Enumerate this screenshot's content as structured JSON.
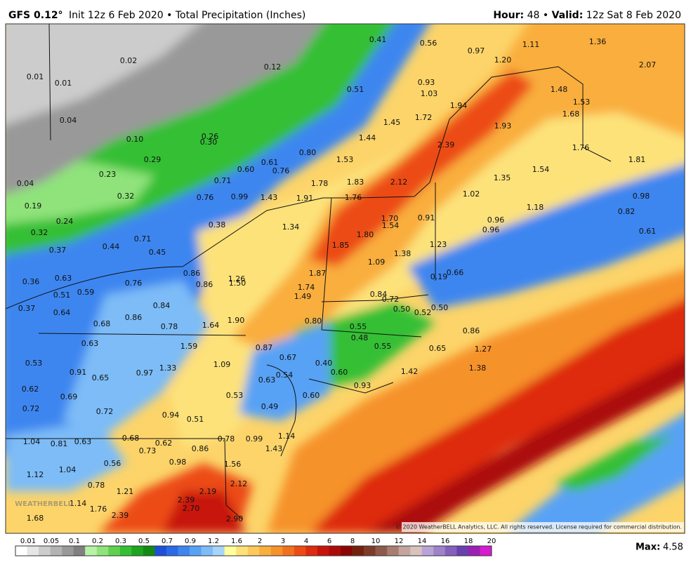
{
  "header": {
    "model": "GFS 0.12°",
    "subtitle": "Init 12z 6 Feb 2020 • Total Precipitation (Inches)",
    "hour_label": "Hour:",
    "hour_value": "48 •",
    "valid_label": "Valid:",
    "valid_value": "12z Sat 8 Feb 2020"
  },
  "map": {
    "watermark": "WEATHERBELL",
    "copyright": "© 2020 WeatherBELL Analytics, LLC. All rights reserved. License required for commercial distribution.",
    "labels": [
      "0.02",
      "0.12",
      "0.01",
      "0.01",
      "0.04",
      "0.10",
      "0.26",
      "0.30",
      "0.29",
      "0.23",
      "0.32",
      "0.04",
      "0.19",
      "0.24",
      "0.32",
      "0.37",
      "0.44",
      "0.71",
      "0.45",
      "0.41",
      "0.56",
      "0.97",
      "1.11",
      "1.36",
      "1.20",
      "2.07",
      "0.51",
      "0.93",
      "1.03",
      "1.48",
      "1.53",
      "1.94",
      "1.68",
      "1.45",
      "1.72",
      "1.93",
      "1.44",
      "0.80",
      "2.39",
      "1.76",
      "1.53",
      "1.54",
      "1.81",
      "0.61",
      "0.60",
      "0.76",
      "0.71",
      "1.78",
      "1.83",
      "2.12",
      "1.35",
      "0.76",
      "0.99",
      "1.43",
      "1.91",
      "1.76",
      "1.02",
      "1.18",
      "0.98",
      "0.82",
      "0.38",
      "1.34",
      "1.70",
      "1.54",
      "0.91",
      "0.96",
      "0.96",
      "0.61",
      "1.80",
      "1.85",
      "1.23",
      "1.38",
      "1.09",
      "0.86",
      "0.66",
      "0.19",
      "0.63",
      "0.36",
      "1.26",
      "1.50",
      "1.87",
      "0.76",
      "0.86",
      "1.74",
      "0.51",
      "0.59",
      "1.49",
      "0.84",
      "0.72",
      "0.84",
      "0.37",
      "0.50",
      "0.52",
      "0.50",
      "0.64",
      "0.86",
      "0.68",
      "0.78",
      "1.64",
      "1.90",
      "0.80",
      "0.55",
      "0.86",
      "0.48",
      "0.63",
      "1.59",
      "0.87",
      "0.55",
      "0.65",
      "1.27",
      "0.67",
      "1.09",
      "0.40",
      "1.38",
      "0.53",
      "0.91",
      "1.33",
      "0.97",
      "0.60",
      "1.42",
      "0.65",
      "0.54",
      "0.63",
      "0.93",
      "0.62",
      "0.69",
      "0.53",
      "0.60",
      "0.49",
      "0.72",
      "0.72",
      "0.94",
      "0.51",
      "0.68",
      "0.78",
      "0.99",
      "1.14",
      "1.04",
      "0.81",
      "0.63",
      "0.62",
      "0.73",
      "0.86",
      "1.43",
      "0.98",
      "0.56",
      "1.04",
      "1.56",
      "1.12",
      "0.78",
      "2.12",
      "1.21",
      "2.19",
      "1.14",
      "1.76",
      "2.39",
      "2.70",
      "2.39",
      "1.68",
      "2.90"
    ]
  },
  "legend": {
    "ticks": [
      "0.01",
      "0.05",
      "0.1",
      "0.2",
      "0.3",
      "0.5",
      "0.7",
      "0.9",
      "1.2",
      "1.6",
      "2",
      "3",
      "4",
      "6",
      "8",
      "10",
      "12",
      "14",
      "16",
      "18",
      "20"
    ],
    "colors": [
      "#ffffff",
      "#e6e6e6",
      "#cccccc",
      "#b3b3b3",
      "#999999",
      "#808080",
      "#b7f2a6",
      "#8fe37a",
      "#5fd14f",
      "#35bf35",
      "#1fa41f",
      "#138a13",
      "#1d4fd8",
      "#2a6ae6",
      "#3d86f0",
      "#58a2f5",
      "#7dbcf7",
      "#a6d4fa",
      "#ffff9e",
      "#fde27a",
      "#fcc95a",
      "#f9ae3d",
      "#f6922a",
      "#f2711f",
      "#ec4b16",
      "#de2a10",
      "#c8120c",
      "#ac0a08",
      "#8c0505",
      "#73220f",
      "#7d3c2a",
      "#8f5a4c",
      "#a87d72",
      "#c4a49c",
      "#d9c2bd",
      "#b9a3d6",
      "#9f82c9",
      "#8560bb",
      "#6a3fae",
      "#9c1fb3",
      "#d61bd0"
    ],
    "max_label": "Max:",
    "max_value": "4.58"
  }
}
